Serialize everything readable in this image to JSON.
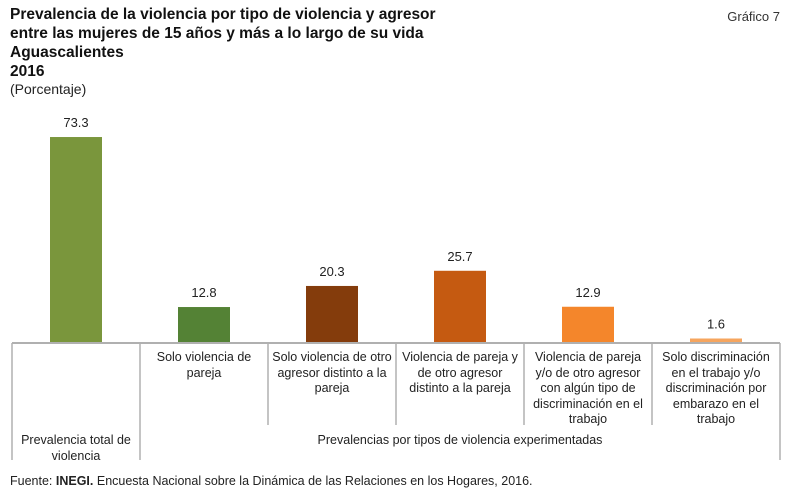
{
  "header": {
    "title_lines": [
      "Prevalencia de la violencia por tipo de violencia y agresor",
      "entre las mujeres de 15 años y más a lo largo de su vida",
      "Aguascalientes",
      "2016"
    ],
    "subtitle": "(Porcentaje)",
    "figure_label": "Gráfico 7"
  },
  "chart_data": {
    "type": "bar",
    "title": "Prevalencia de la violencia por tipo de violencia y agresor entre las mujeres de 15 años y más a lo largo de su vida, Aguascalientes 2016",
    "ylabel": "Porcentaje",
    "xlabel": "",
    "ylim": [
      0,
      75
    ],
    "grid": false,
    "legend": "none",
    "categories": [
      "Prevalencia total de violencia",
      "Solo violencia de pareja",
      "Solo violencia de otro agresor distinto a la pareja",
      "Violencia de pareja y de otro agresor distinto a la pareja",
      "Violencia de pareja y/o de otro agresor con algún tipo de discriminación en el trabajo",
      "Solo discriminación en el trabajo y/o discriminación por embarazo en el trabajo"
    ],
    "values": [
      73.3,
      12.8,
      20.3,
      25.7,
      12.9,
      1.6
    ],
    "data_labels": [
      "73.3",
      "12.8",
      "20.3",
      "25.7",
      "12.9",
      "1.6"
    ],
    "colors": [
      "#7a963c",
      "#548235",
      "#843c0c",
      "#c55a11",
      "#f4862b",
      "#f6a55e"
    ],
    "groups": [
      {
        "label": "Prevalencia total de violencia",
        "categories": [
          0
        ]
      },
      {
        "label": "Prevalencias por tipos de violencia experimentadas",
        "categories": [
          1,
          2,
          3,
          4,
          5
        ]
      }
    ]
  },
  "footer": {
    "source_prefix": "Fuente: ",
    "source_org": "INEGI.",
    "source_text": " Encuesta Nacional sobre la Dinámica de las Relaciones en los Hogares, 2016."
  },
  "colors": {
    "axis": "#b0b0b0",
    "text": "#222222"
  }
}
